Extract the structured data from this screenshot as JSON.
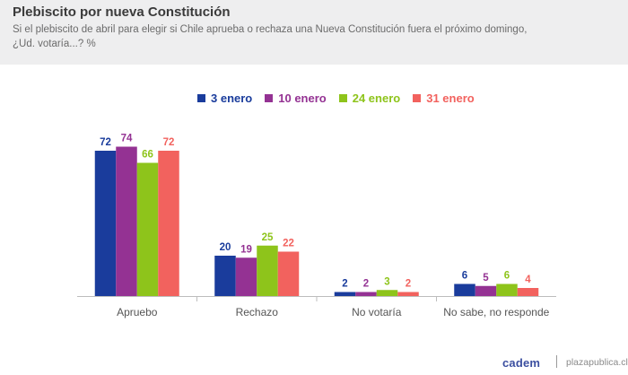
{
  "header": {
    "title": "Plebiscito por nueva Constitución",
    "subtitle_line1": "Si el plebiscito de abril para elegir si Chile aprueba o rechaza una Nueva Constitución fuera el próximo domingo,",
    "subtitle_line2": "¿Ud. votaría...? %"
  },
  "footer": {
    "brand": "cadem",
    "site": "plazapublica.cl"
  },
  "chart_data": {
    "type": "bar",
    "categories": [
      "Apruebo",
      "Rechazo",
      "No votaría",
      "No sabe, no responde"
    ],
    "series": [
      {
        "name": "3 enero",
        "color": "#1a3c9c",
        "values": [
          72,
          20,
          2,
          6
        ]
      },
      {
        "name": "10 enero",
        "color": "#943293",
        "values": [
          74,
          19,
          2,
          5
        ]
      },
      {
        "name": "24 enero",
        "color": "#8ec41b",
        "values": [
          66,
          25,
          3,
          6
        ]
      },
      {
        "name": "31 enero",
        "color": "#f2625e",
        "values": [
          72,
          22,
          2,
          4
        ]
      }
    ],
    "ylim": [
      0,
      80
    ],
    "legend_position": "top",
    "grid": false
  }
}
